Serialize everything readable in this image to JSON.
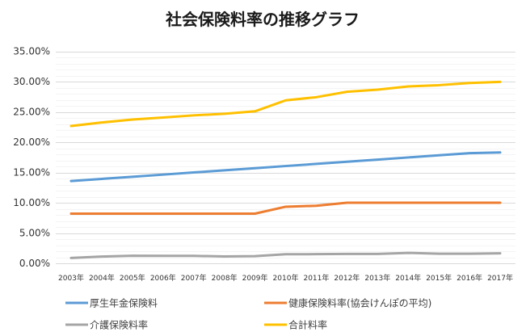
{
  "chart_data": {
    "type": "line",
    "title": "社会保険料率の推移グラフ",
    "xlabel": "",
    "ylabel": "",
    "categories": [
      "2003年",
      "2004年",
      "2005年",
      "2006年",
      "2007年",
      "2008年",
      "2009年",
      "2010年",
      "2011年",
      "2012年",
      "2013年",
      "2014年",
      "2015年",
      "2016年",
      "2017年"
    ],
    "ylim": [
      0,
      35
    ],
    "y_major_step": 5,
    "y_minor_step": 1,
    "y_tick_labels": [
      "0.00%",
      "5.00%",
      "10.00%",
      "15.00%",
      "20.00%",
      "25.00%",
      "30.00%",
      "35.00%"
    ],
    "grid": true,
    "legend_position": "bottom",
    "series": [
      {
        "name": "厚生年金保険料",
        "color": "#5b9bd5",
        "values": [
          13.58,
          13.934,
          14.288,
          14.642,
          14.996,
          15.35,
          15.704,
          16.058,
          16.412,
          16.766,
          17.12,
          17.474,
          17.828,
          18.182,
          18.3
        ]
      },
      {
        "name": "健康保険料率(協会けんぽの平均)",
        "color": "#ed7d31",
        "values": [
          8.2,
          8.2,
          8.2,
          8.2,
          8.2,
          8.2,
          8.2,
          9.34,
          9.5,
          10.0,
          10.0,
          10.0,
          10.0,
          10.0,
          10.0
        ]
      },
      {
        "name": "介護保険料率",
        "color": "#a5a5a5",
        "values": [
          0.89,
          1.11,
          1.25,
          1.23,
          1.23,
          1.13,
          1.19,
          1.5,
          1.51,
          1.55,
          1.55,
          1.72,
          1.58,
          1.58,
          1.65
        ]
      },
      {
        "name": "合計料率",
        "color": "#ffc000",
        "values": [
          22.67,
          23.244,
          23.738,
          24.072,
          24.426,
          24.68,
          25.094,
          26.898,
          27.422,
          28.316,
          28.67,
          29.194,
          29.408,
          29.762,
          29.95
        ]
      }
    ]
  },
  "style": {
    "major_grid_color": "#d9d9d9",
    "minor_grid_color": "#f0f0f0"
  }
}
